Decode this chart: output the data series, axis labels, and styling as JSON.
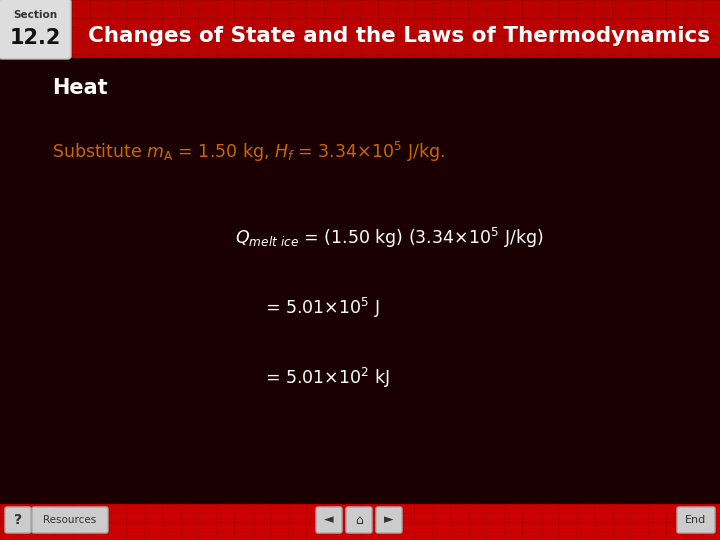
{
  "section_label": "Section",
  "section_number": "12.2",
  "title": "Changes of State and the Laws of Thermodynamics",
  "subtitle": "Heat",
  "bg_dark": "#1a0000",
  "bg_header": "#bb0000",
  "header_grid_color": "#990000",
  "text_white": "#ffffff",
  "text_orange": "#cc6600",
  "section_bg": "#dddddd",
  "footer_red": "#cc0000",
  "footer_grid_color": "#aa0000",
  "button_bg": "#cccccc",
  "button_edge": "#aaaaaa"
}
